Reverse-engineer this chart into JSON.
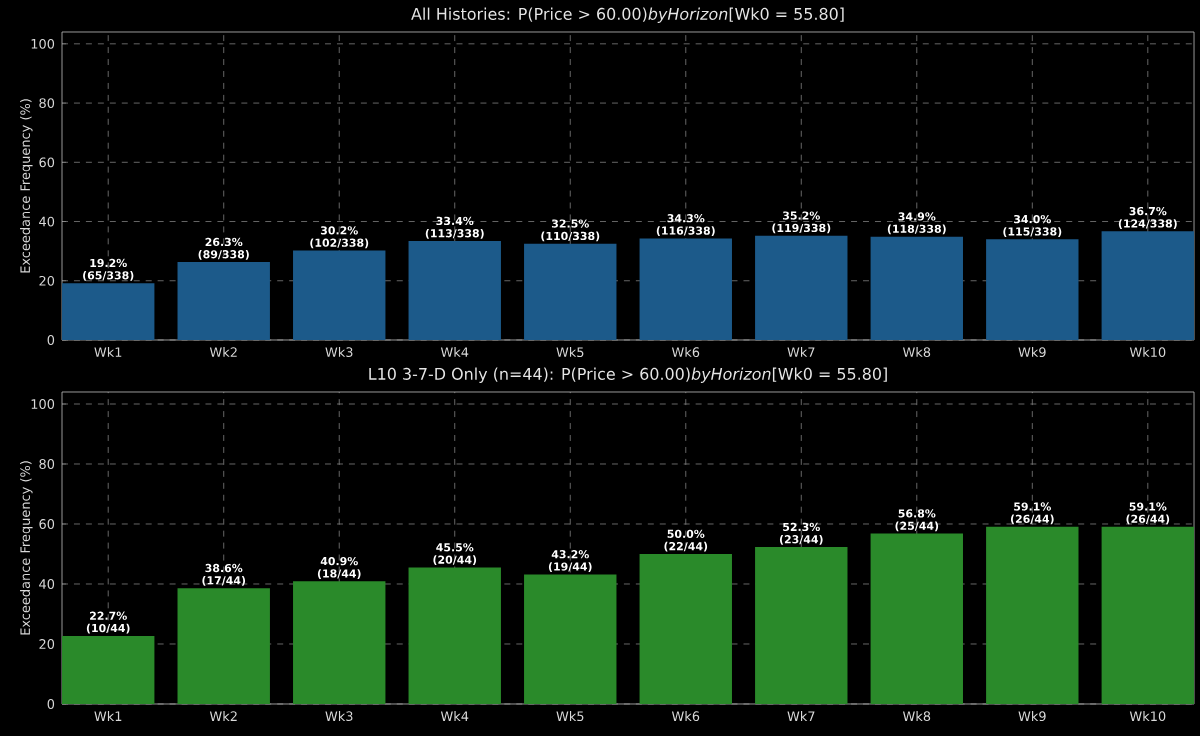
{
  "chart_data": [
    {
      "type": "bar",
      "title": "All Histories: P(Price > 60.00)*byHorizon*[Wk0 = 55.80]",
      "ylabel": "Exceedance Frequency (%)",
      "categories": [
        "Wk1",
        "Wk2",
        "Wk3",
        "Wk4",
        "Wk5",
        "Wk6",
        "Wk7",
        "Wk8",
        "Wk9",
        "Wk10"
      ],
      "values": [
        19.2,
        26.3,
        30.2,
        33.4,
        32.5,
        34.3,
        35.2,
        34.9,
        34.0,
        36.7
      ],
      "value_labels": [
        "19.2% (65/338)",
        "26.3% (89/338)",
        "30.2% (102/338)",
        "33.4% (113/338)",
        "32.5% (110/338)",
        "34.3% (116/338)",
        "35.2% (119/338)",
        "34.9% (118/338)",
        "34.0% (115/338)",
        "36.7% (124/338)"
      ],
      "color": "#1c5a8a",
      "ylim": [
        0,
        104
      ],
      "yticks": [
        0,
        20,
        40,
        60,
        80,
        100
      ],
      "grid": true
    },
    {
      "type": "bar",
      "title": "L10 3-7-D Only (n=44): P(Price > 60.00)*byHorizon*[Wk0 = 55.80]",
      "ylabel": "Exceedance Frequency (%)",
      "categories": [
        "Wk1",
        "Wk2",
        "Wk3",
        "Wk4",
        "Wk5",
        "Wk6",
        "Wk7",
        "Wk8",
        "Wk9",
        "Wk10"
      ],
      "values": [
        22.7,
        38.6,
        40.9,
        45.5,
        43.2,
        50.0,
        52.3,
        56.8,
        59.1,
        59.1
      ],
      "value_labels": [
        "22.7% (10/44)",
        "38.6% (17/44)",
        "40.9% (18/44)",
        "45.5% (20/44)",
        "43.2% (19/44)",
        "50.0% (22/44)",
        "52.3% (23/44)",
        "56.8% (25/44)",
        "59.1% (26/44)",
        "59.1% (26/44)"
      ],
      "color": "#2a8a2a",
      "ylim": [
        0,
        104
      ],
      "yticks": [
        0,
        20,
        40,
        60,
        80,
        100
      ],
      "grid": true
    }
  ]
}
